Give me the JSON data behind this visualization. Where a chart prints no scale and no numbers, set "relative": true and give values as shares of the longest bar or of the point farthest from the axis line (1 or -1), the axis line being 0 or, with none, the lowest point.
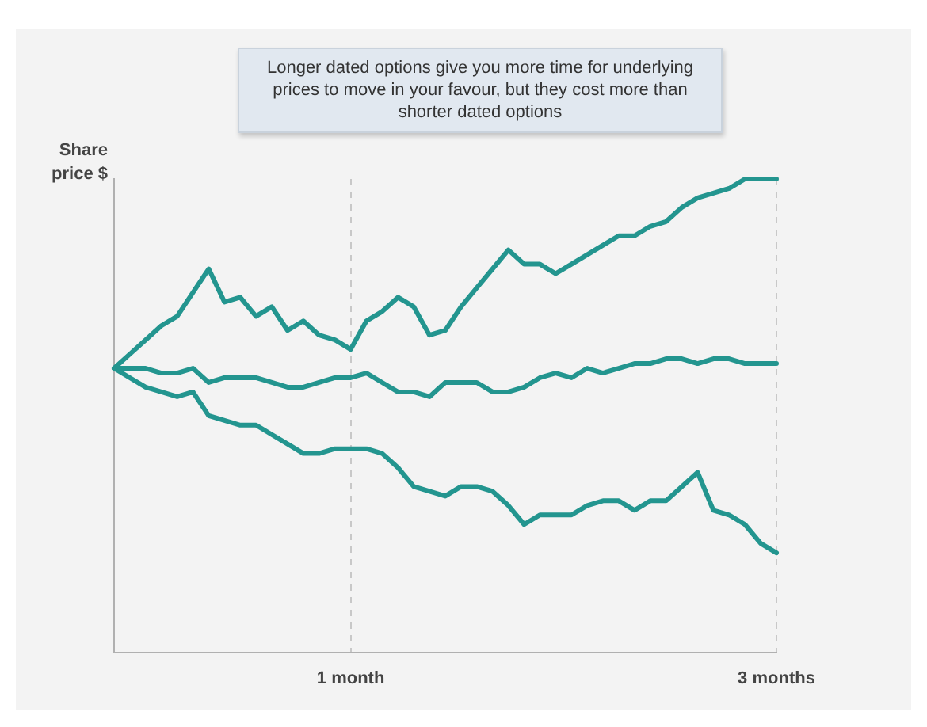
{
  "chart_data": {
    "type": "line",
    "ylabel": "Share price $",
    "annotations": [
      "Longer dated options give you more time for underlying prices to move in your favour, but they cost more than shorter dated options"
    ],
    "categories": [
      null,
      null,
      null,
      null,
      null,
      null,
      null,
      null,
      null,
      null,
      null,
      null,
      null,
      null,
      null,
      "1 month",
      null,
      null,
      null,
      null,
      null,
      null,
      null,
      null,
      null,
      null,
      null,
      null,
      null,
      null,
      null,
      null,
      null,
      null,
      null,
      null,
      null,
      null,
      null,
      null,
      null,
      null,
      "3 months"
    ],
    "series": [
      {
        "color": "#23958f",
        "values": [
          0.6,
          0.63,
          0.66,
          0.69,
          0.71,
          0.76,
          0.81,
          0.74,
          0.75,
          0.71,
          0.73,
          0.68,
          0.7,
          0.67,
          0.66,
          0.64,
          0.7,
          0.72,
          0.75,
          0.73,
          0.67,
          0.68,
          0.73,
          0.77,
          0.81,
          0.85,
          0.82,
          0.82,
          0.8,
          0.82,
          0.84,
          0.86,
          0.88,
          0.88,
          0.9,
          0.91,
          0.94,
          0.96,
          0.97,
          0.98,
          1.0,
          1.0,
          1.0
        ]
      },
      {
        "color": "#23958f",
        "values": [
          0.6,
          0.6,
          0.6,
          0.59,
          0.59,
          0.6,
          0.57,
          0.58,
          0.58,
          0.58,
          0.57,
          0.56,
          0.56,
          0.57,
          0.58,
          0.58,
          0.59,
          0.57,
          0.55,
          0.55,
          0.54,
          0.57,
          0.57,
          0.57,
          0.55,
          0.55,
          0.56,
          0.58,
          0.59,
          0.58,
          0.6,
          0.59,
          0.6,
          0.61,
          0.61,
          0.62,
          0.62,
          0.61,
          0.62,
          0.62,
          0.61,
          0.61,
          0.61
        ]
      },
      {
        "color": "#23958f",
        "values": [
          0.6,
          0.58,
          0.56,
          0.55,
          0.54,
          0.55,
          0.5,
          0.49,
          0.48,
          0.48,
          0.46,
          0.44,
          0.42,
          0.42,
          0.43,
          0.43,
          0.43,
          0.42,
          0.39,
          0.35,
          0.34,
          0.33,
          0.35,
          0.35,
          0.34,
          0.31,
          0.27,
          0.29,
          0.29,
          0.29,
          0.31,
          0.32,
          0.32,
          0.3,
          0.32,
          0.32,
          0.35,
          0.38,
          0.3,
          0.29,
          0.27,
          0.23,
          0.21
        ]
      }
    ],
    "relative": true,
    "grid": "x",
    "line_style": "solid",
    "marker": "none"
  }
}
